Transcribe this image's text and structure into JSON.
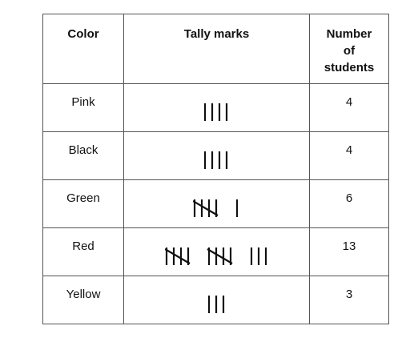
{
  "table": {
    "headers": {
      "color": "Color",
      "tally": "Tally marks",
      "count_line1": "Number",
      "count_line2": "of",
      "count_line3": "students"
    },
    "rows": [
      {
        "color": "Pink",
        "tally": 4,
        "count": "4"
      },
      {
        "color": "Black",
        "tally": 4,
        "count": "4"
      },
      {
        "color": "Green",
        "tally": 6,
        "count": "6"
      },
      {
        "color": "Red",
        "tally": 13,
        "count": "13"
      },
      {
        "color": "Yellow",
        "tally": 3,
        "count": "3"
      }
    ]
  }
}
